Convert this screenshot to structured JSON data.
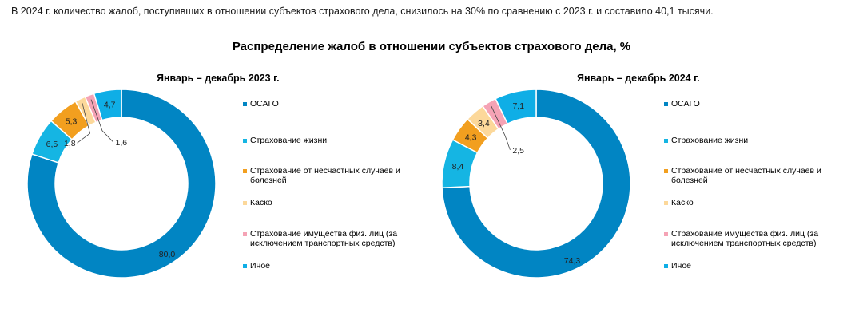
{
  "intro_text": "В 2024 г. количество жалоб, поступивших в отношении субъектов страхового дела, снизилось на 30% по сравнению с 2023 г. и составило 40,1 тысячи.",
  "colors": [
    "#0185c3",
    "#15b5e3",
    "#f29f1f",
    "#fcd89a",
    "#f5a3b5",
    "#0faee6"
  ],
  "chart_data": [
    {
      "type": "pie",
      "donut": true,
      "title": "Распределение жалоб в отношении субъектов страхового дела, %",
      "subtitle": "Январь – декабрь 2023 г.",
      "categories": [
        "ОСАГО",
        "Страхование жизни",
        "Страхование от несчастных случаев и болезней",
        "Каско",
        "Страхование имущества физ. лиц (за исключением транспортных средств)",
        "Иное"
      ],
      "values": [
        80.0,
        6.5,
        5.3,
        1.8,
        1.6,
        4.7
      ],
      "labels": [
        "80,0",
        "6,5",
        "5,3",
        "1,8",
        "1,6",
        "4,7"
      ],
      "legend": "right"
    },
    {
      "type": "pie",
      "donut": true,
      "title": "Распределение жалоб в отношении субъектов страхового дела, %",
      "subtitle": "Январь – декабрь 2024 г.",
      "categories": [
        "ОСАГО",
        "Страхование жизни",
        "Страхование от несчастных случаев и болезней",
        "Каско",
        "Страхование имущества физ. лиц (за исключением транспортных средств)",
        "Иное"
      ],
      "values": [
        74.3,
        8.4,
        4.3,
        3.4,
        2.5,
        7.1
      ],
      "labels": [
        "74,3",
        "8,4",
        "4,3",
        "3,4",
        "2,5",
        "7,1"
      ],
      "legend": "right"
    }
  ]
}
